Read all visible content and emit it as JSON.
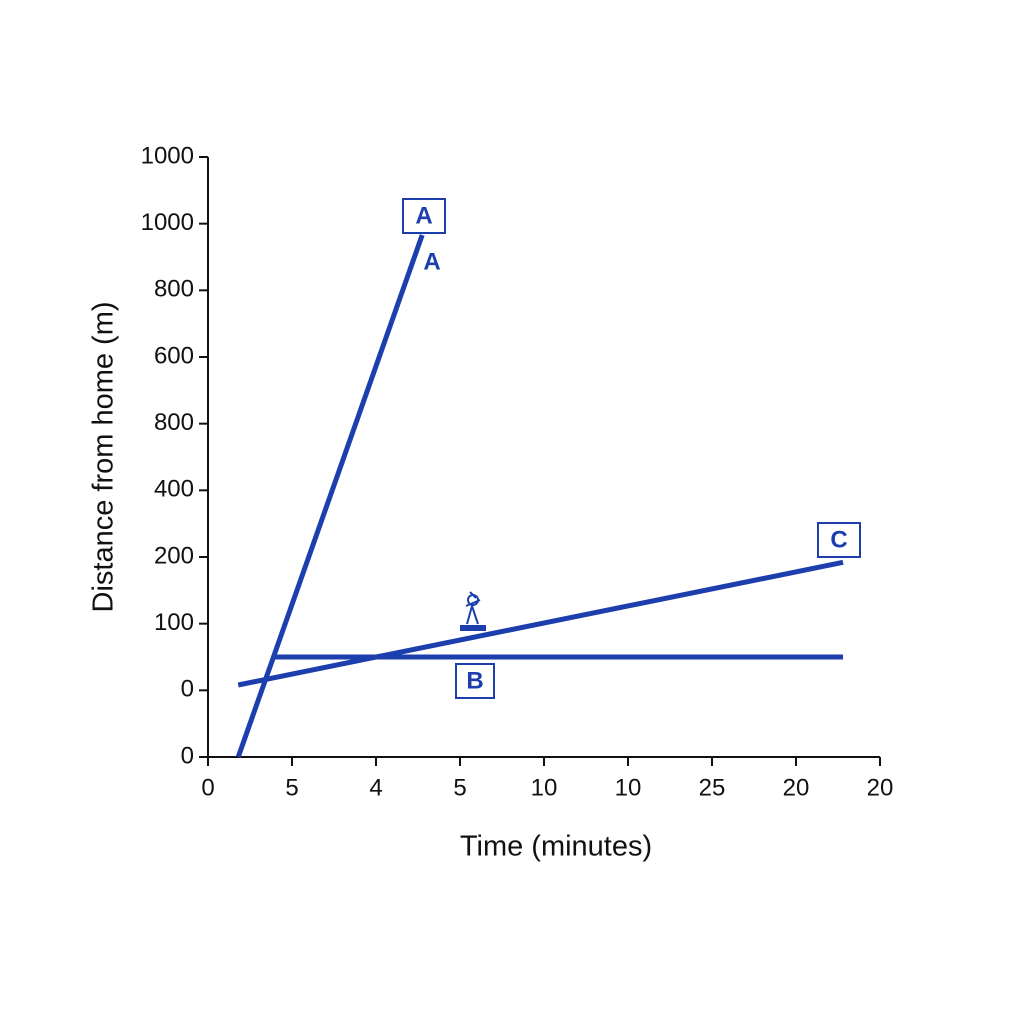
{
  "chart_data": {
    "type": "line",
    "x_label": "Time (minutes)",
    "y_label": "Distance from home (m)",
    "xlim": [
      0,
      8
    ],
    "ylim": [
      0,
      9
    ],
    "xticks": [
      {
        "value": 0,
        "label": "0"
      },
      {
        "value": 1,
        "label": "5"
      },
      {
        "value": 2,
        "label": "4"
      },
      {
        "value": 3,
        "label": "5"
      },
      {
        "value": 4,
        "label": "10"
      },
      {
        "value": 5,
        "label": "10"
      },
      {
        "value": 6,
        "label": "25"
      },
      {
        "value": 7,
        "label": "20"
      },
      {
        "value": 8,
        "label": "20"
      }
    ],
    "yticks": [
      {
        "value": 0,
        "label": "0"
      },
      {
        "value": 1,
        "label": "0"
      },
      {
        "value": 2,
        "label": "100"
      },
      {
        "value": 3,
        "label": "200"
      },
      {
        "value": 4,
        "label": "400"
      },
      {
        "value": 5,
        "label": "800"
      },
      {
        "value": 6,
        "label": "600"
      },
      {
        "value": 7,
        "label": "800"
      },
      {
        "value": 8,
        "label": "1000"
      },
      {
        "value": 9,
        "label": "1000"
      }
    ],
    "series": [
      {
        "name": "A",
        "color": "#1d3fae",
        "x": [
          0.36,
          2.55
        ],
        "values": [
          0,
          7.83
        ]
      },
      {
        "name": "B",
        "color": "#1d3fae",
        "x": [
          0.8,
          7.56
        ],
        "values": [
          1.5,
          1.5
        ]
      },
      {
        "name": "C",
        "color": "#1d3fae",
        "x": [
          0.36,
          7.56
        ],
        "values": [
          1.08,
          2.92
        ]
      }
    ],
    "annotations": [
      "A"
    ]
  }
}
